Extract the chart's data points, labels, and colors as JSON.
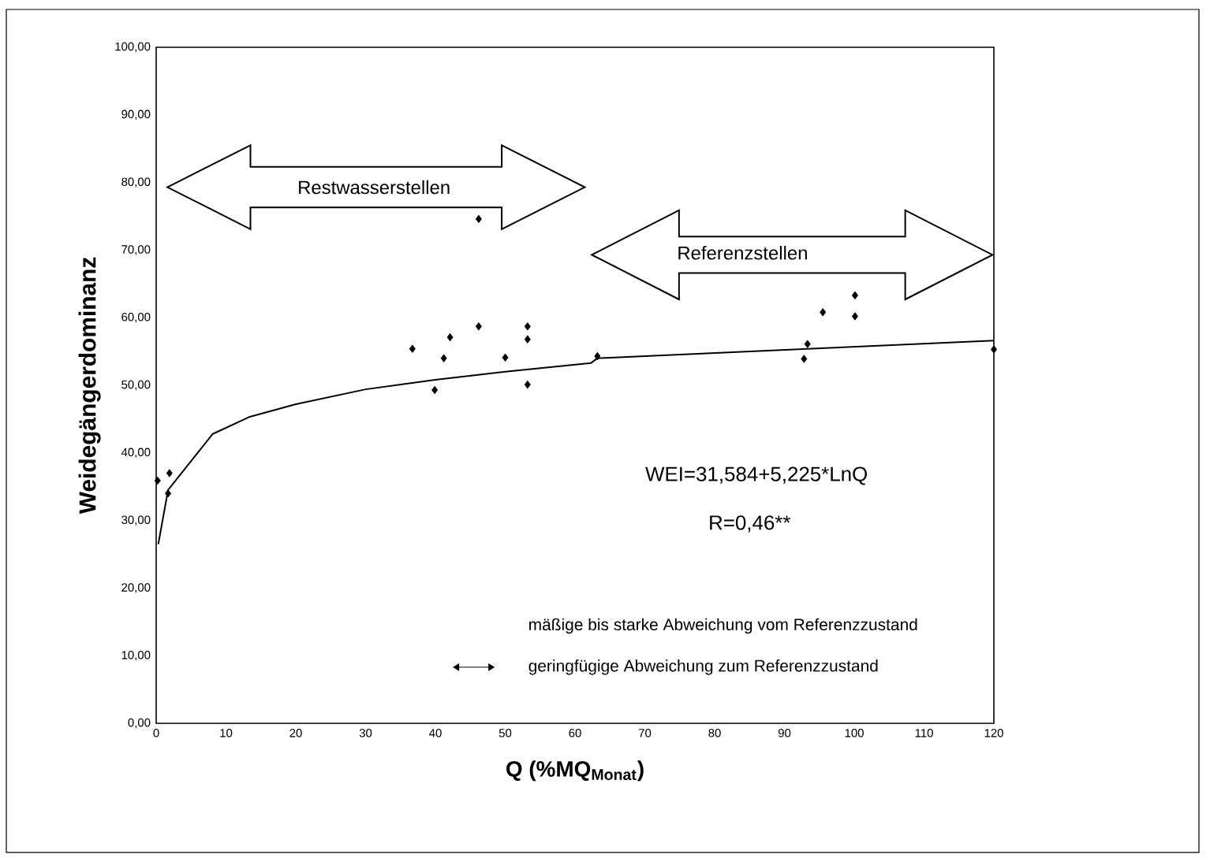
{
  "chart_data": {
    "type": "scatter",
    "xlabel": "Q (%MQ$_{Monat}$)",
    "ylabel": "Weidegängerdominanz",
    "xlim": [
      0,
      120
    ],
    "ylim": [
      0,
      100
    ],
    "xticks": [
      0,
      10,
      20,
      30,
      40,
      50,
      60,
      70,
      80,
      90,
      100,
      110,
      120
    ],
    "yticks": [
      {
        "value": 0,
        "label": "0,00"
      },
      {
        "value": 10,
        "label": "10,00"
      },
      {
        "value": 20,
        "label": "20,00"
      },
      {
        "value": 30,
        "label": "30,00"
      },
      {
        "value": 40,
        "label": "40,00"
      },
      {
        "value": 50,
        "label": "50,00"
      },
      {
        "value": 60,
        "label": "60,00"
      },
      {
        "value": 70,
        "label": "70,00"
      },
      {
        "value": 80,
        "label": "80,00"
      },
      {
        "value": 90,
        "label": "90,00"
      },
      {
        "value": 100,
        "label": "100,00"
      }
    ],
    "grid": false,
    "series": [
      {
        "type": "scatter",
        "color": "#000000",
        "marker": "diamond",
        "x": [
          0.2,
          1.9,
          1.7,
          36.7,
          39.9,
          41.2,
          42.1,
          46.2,
          46.2,
          50.0,
          53.2,
          53.2,
          53.2,
          63.2,
          92.8,
          93.3,
          95.5,
          100.1,
          100.1,
          120
        ],
        "values": [
          35.9,
          37.0,
          34.0,
          55.4,
          49.3,
          54.0,
          57.1,
          74.6,
          58.7,
          54.1,
          58.7,
          56.8,
          50.1,
          54.3,
          53.9,
          56.1,
          60.8,
          63.3,
          60.2,
          55.3
        ]
      },
      {
        "type": "line",
        "color": "#000000",
        "marker": "none",
        "line_style": "solid",
        "x": [
          0.3,
          1.7,
          8.1,
          13.3,
          20,
          30,
          40,
          50,
          62.3,
          63.2,
          93.3,
          120
        ],
        "values": [
          26.5,
          34.5,
          42.8,
          45.3,
          47.2,
          49.4,
          50.8,
          52.0,
          53.3,
          54.0,
          55.4,
          56.6
        ]
      }
    ],
    "annotations": [
      "Restwasserstellen",
      "Referenzstellen",
      "WEI=31,584+5,225*LnQ",
      "R=0,46**",
      "mäßige bis starke Abweichung vom Referenzzustand",
      "geringfügige Abweichung zum Referenzzustand"
    ]
  }
}
